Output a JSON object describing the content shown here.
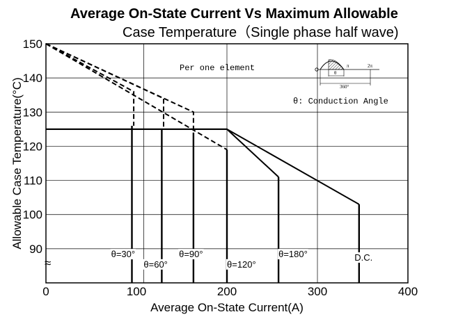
{
  "chart_data": {
    "type": "line",
    "title": "Average On-State Current Vs Maximum Allowable",
    "subtitle": "Case Temperature（Single phase half wave)",
    "xlabel": "Average On-State Current(A)",
    "ylabel": "Allowable Case Temperature(°C)",
    "xlim": [
      0,
      400
    ],
    "ylim": [
      80,
      150
    ],
    "x_ticks": [
      "0",
      "100",
      "200",
      "300",
      "400"
    ],
    "y_ticks": [
      "90",
      "100",
      "110",
      "120",
      "130",
      "140",
      "150"
    ],
    "axis_break_symbol": "≈",
    "grid": true,
    "annotation_element": "Per one element",
    "annotation_conduction": "θ: Conduction Angle",
    "inset_labels": {
      "theta": "θ",
      "pi": "π",
      "two_pi": "2π",
      "deg360": "360°"
    },
    "series": [
      {
        "name": "θ=30°",
        "style": "dashed",
        "points": [
          [
            0,
            150
          ],
          [
            97,
            136
          ],
          [
            97,
            126
          ]
        ],
        "drop": [
          [
            95,
            126
          ],
          [
            95,
            80
          ]
        ]
      },
      {
        "name": "θ=60°",
        "style": "dashed",
        "points": [
          [
            0,
            150
          ],
          [
            130,
            134
          ],
          [
            130,
            125
          ]
        ],
        "drop": [
          [
            128,
            125
          ],
          [
            128,
            80
          ]
        ]
      },
      {
        "name": "θ=90°",
        "style": "dashed",
        "points": [
          [
            0,
            150
          ],
          [
            163,
            130
          ],
          [
            163,
            124
          ]
        ],
        "drop": [
          [
            163,
            124
          ],
          [
            163,
            80
          ]
        ]
      },
      {
        "name": "θ=120°",
        "style": "dashed",
        "points": [
          [
            0,
            150
          ],
          [
            200,
            119
          ]
        ],
        "drop": [
          [
            200,
            119
          ],
          [
            200,
            80
          ]
        ]
      },
      {
        "name": "θ=180°",
        "style": "solid",
        "points": [
          [
            0,
            125
          ],
          [
            200,
            125
          ],
          [
            257,
            111
          ]
        ],
        "drop": [
          [
            257,
            111
          ],
          [
            257,
            80
          ]
        ]
      },
      {
        "name": "D.C.",
        "style": "solid",
        "points": [
          [
            0,
            125
          ],
          [
            200,
            125
          ],
          [
            346,
            103
          ]
        ],
        "drop": [
          [
            346,
            103
          ],
          [
            346,
            80
          ]
        ]
      }
    ],
    "series_labels": [
      {
        "text": "θ=30°",
        "x": 72,
        "y": 87.5
      },
      {
        "text": "θ=60°",
        "x": 108,
        "y": 84.5
      },
      {
        "text": "θ=90°",
        "x": 147,
        "y": 87.5
      },
      {
        "text": "θ=120°",
        "x": 200,
        "y": 84.5
      },
      {
        "text": "θ=180°",
        "x": 257,
        "y": 87.5
      },
      {
        "text": "D.C.",
        "x": 341,
        "y": 86.5
      }
    ]
  }
}
